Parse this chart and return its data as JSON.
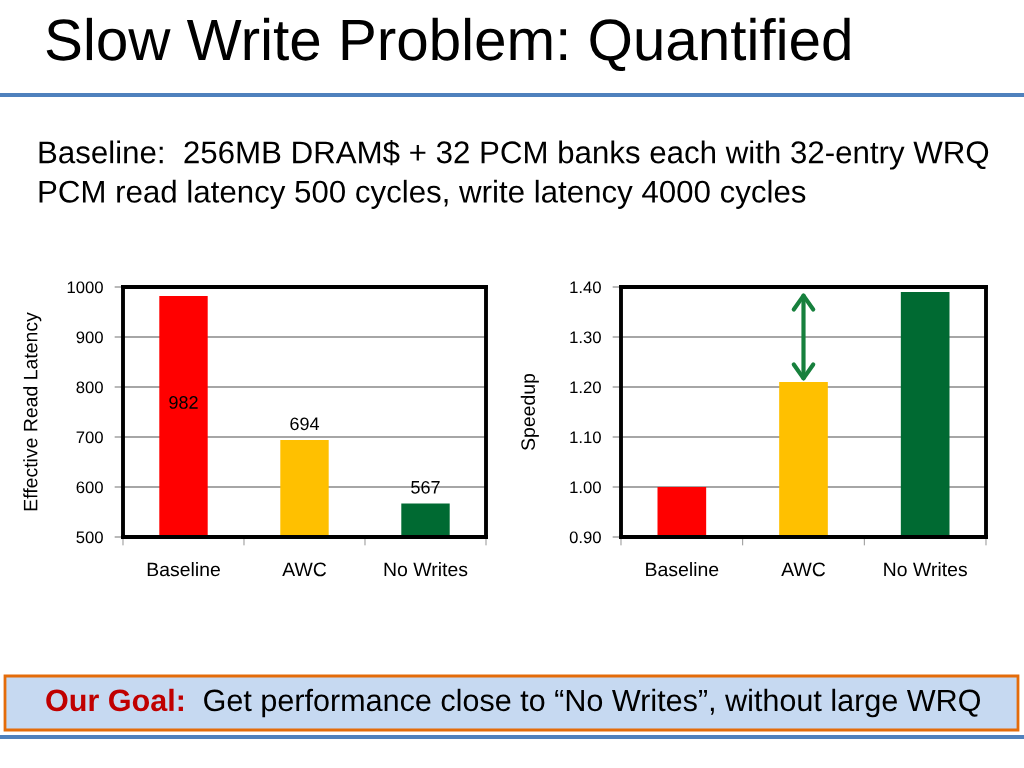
{
  "chart_data": [
    {
      "type": "bar",
      "title": "Slow Write Problem: Quantified",
      "subtitle": "Baseline:  256MB DRAM$ + 32 PCM banks each with 32-entry WRQ\nPCM read latency 500 cycles, write latency 4000 cycles",
      "ylabel": "Effective Read Latency",
      "categories": [
        "Baseline",
        "AWC",
        "No Writes"
      ],
      "values": [
        982,
        694,
        567
      ],
      "colors": [
        "#ff0000",
        "#ffc000",
        "#006a32"
      ],
      "ylim": [
        500,
        1000
      ],
      "yticks": [
        500,
        600,
        700,
        800,
        900,
        1000
      ],
      "grid": "y",
      "data_labels": true
    },
    {
      "type": "bar",
      "ylabel": "Speedup",
      "categories": [
        "Baseline",
        "AWC",
        "No Writes"
      ],
      "values": [
        1.0,
        1.21,
        1.39
      ],
      "colors": [
        "#ff0000",
        "#ffc000",
        "#006a32"
      ],
      "ylim": [
        0.9,
        1.4
      ],
      "yticks": [
        {
          "value": 0.9,
          "label": "0.90"
        },
        {
          "value": 1.0,
          "label": "1.00"
        },
        {
          "value": 1.1,
          "label": "1.10"
        },
        {
          "value": 1.2,
          "label": "1.20"
        },
        {
          "value": 1.3,
          "label": "1.30"
        },
        {
          "value": 1.4,
          "label": "1.40"
        }
      ],
      "grid": "y",
      "annotations": [
        "Our Goal:  Get performance close to “No Writes”, without large WRQ"
      ]
    }
  ]
}
